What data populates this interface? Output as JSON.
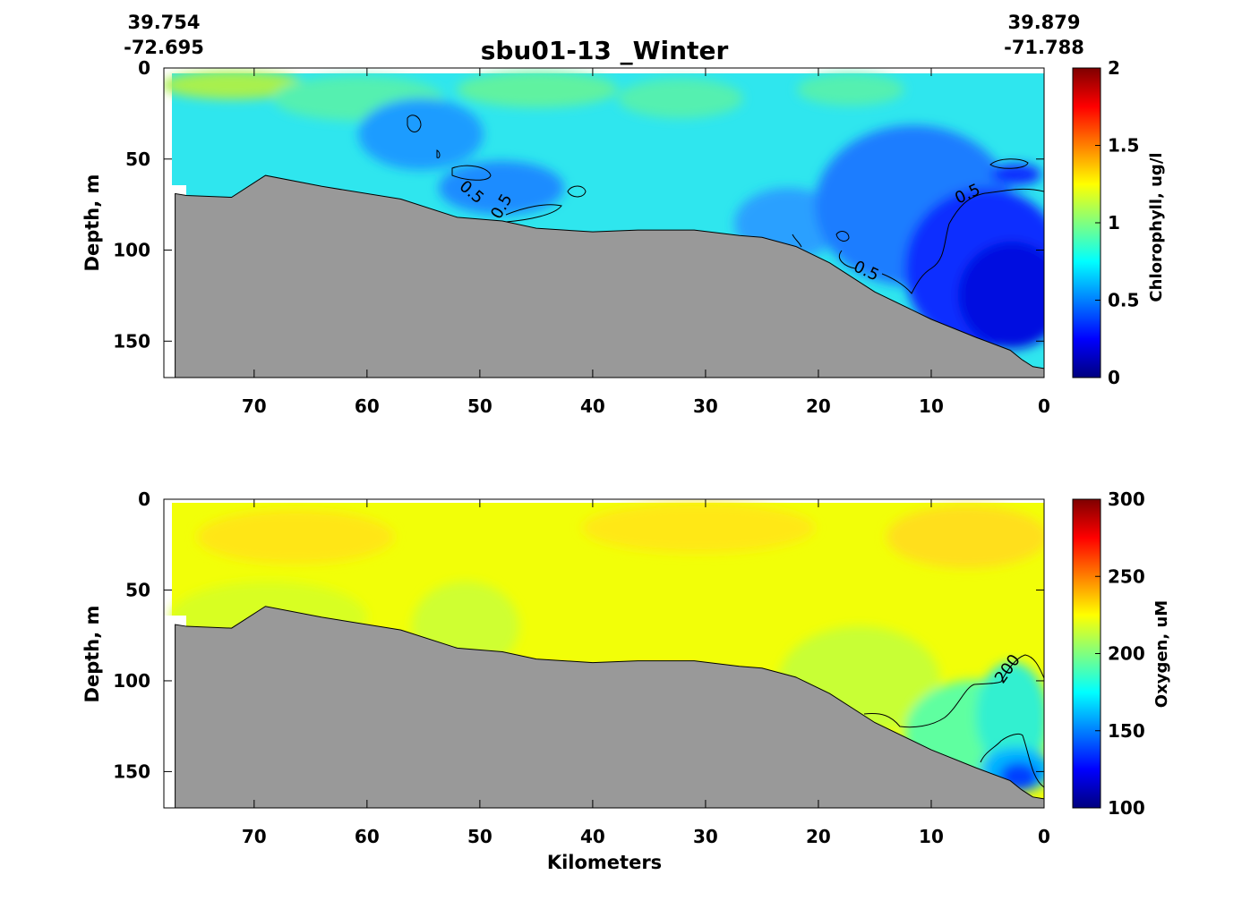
{
  "figure": {
    "title": "sbu01-13 _Winter",
    "start_lat": "39.754",
    "start_lon": "-72.695",
    "end_lat": "39.879",
    "end_lon": "-71.788",
    "colormap": "jet",
    "bottom_color": "#999999"
  },
  "chart_data": [
    {
      "type": "heatmap",
      "name": "chlorophyll-section",
      "title": "",
      "xlabel": "",
      "ylabel": "Depth, m",
      "x_ticks": [
        "70",
        "60",
        "50",
        "40",
        "30",
        "20",
        "10",
        "0"
      ],
      "y_ticks": [
        "0",
        "50",
        "100",
        "150"
      ],
      "xlim": [
        78,
        0
      ],
      "ylim": [
        0,
        170
      ],
      "y_inverted": true,
      "x_reversed": true,
      "colorbar": {
        "label": "Chlorophyll, ug/l",
        "range": [
          0,
          2
        ],
        "ticks": [
          "0",
          "0.5",
          "1",
          "1.5",
          "2"
        ]
      },
      "contour_labels": [
        "0.5",
        "0.5",
        "0.5",
        "0.5"
      ],
      "contour_level": 0.5,
      "bathymetry_km": [
        77,
        76,
        72,
        69,
        64,
        57,
        52,
        48,
        45,
        40,
        36,
        31,
        27,
        25,
        22,
        19,
        15,
        10,
        6,
        3,
        2,
        1,
        0
      ],
      "bathymetry_depth_m": [
        69,
        70,
        71,
        59,
        65,
        72,
        82,
        84,
        88,
        90,
        89,
        89,
        92,
        93,
        98,
        107,
        123,
        138,
        148,
        155,
        160,
        164,
        165
      ]
    },
    {
      "type": "heatmap",
      "name": "oxygen-section",
      "title": "",
      "xlabel": "Kilometers",
      "ylabel": "Depth, m",
      "x_ticks": [
        "70",
        "60",
        "50",
        "40",
        "30",
        "20",
        "10",
        "0"
      ],
      "y_ticks": [
        "0",
        "50",
        "100",
        "150"
      ],
      "xlim": [
        78,
        0
      ],
      "ylim": [
        0,
        170
      ],
      "y_inverted": true,
      "x_reversed": true,
      "colorbar": {
        "label": "Oxygen, uM",
        "range": [
          100,
          300
        ],
        "ticks": [
          "100",
          "150",
          "200",
          "250",
          "300"
        ]
      },
      "contour_labels": [
        "200"
      ],
      "contour_level": 200,
      "bathymetry_km": [
        77,
        76,
        72,
        69,
        64,
        57,
        52,
        48,
        45,
        40,
        36,
        31,
        27,
        25,
        22,
        19,
        15,
        10,
        6,
        3,
        2,
        1,
        0
      ],
      "bathymetry_depth_m": [
        69,
        70,
        71,
        59,
        65,
        72,
        82,
        84,
        88,
        90,
        89,
        89,
        92,
        93,
        98,
        107,
        123,
        138,
        148,
        155,
        160,
        164,
        165
      ]
    }
  ]
}
